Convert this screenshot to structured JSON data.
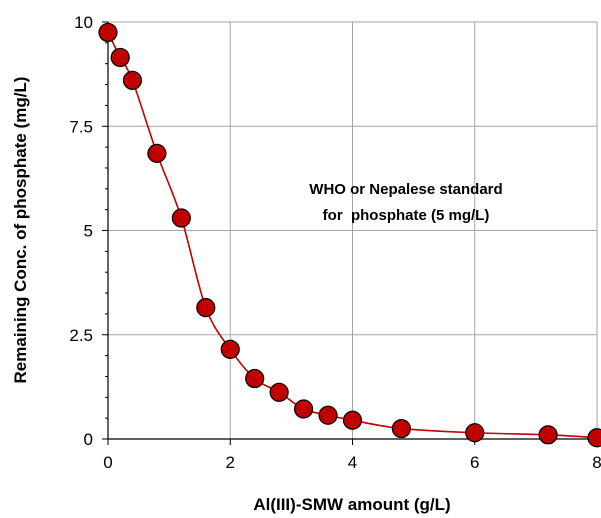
{
  "chart_data": {
    "type": "scatter",
    "title": "",
    "xlabel": "Al(III)-SMW amount (g/L)",
    "ylabel": "Remaining Conc. of phosphate (mg/L)",
    "xlim": [
      0,
      8
    ],
    "ylim": [
      0,
      10
    ],
    "x_ticks": [
      0,
      2,
      4,
      6,
      8
    ],
    "y_ticks": [
      0,
      2.5,
      5,
      7.5,
      10
    ],
    "x_tick_labels": [
      "0",
      "2",
      "4",
      "6",
      "8"
    ],
    "y_tick_labels": [
      "0",
      "2.5",
      "5",
      "7.5",
      "10"
    ],
    "grid": true,
    "line": "smooth",
    "colors": {
      "marker_fill": "#c00000",
      "marker_stroke": "#000000",
      "line": "#c00000",
      "grid": "#a6a6a6"
    },
    "annotation": {
      "line1": "WHO or Nepalese standard",
      "line2": "for  phosphate (5 mg/L)"
    },
    "series": [
      {
        "x": [
          0,
          0.2,
          0.4,
          0.8,
          1.2,
          1.6,
          2.0,
          2.4,
          2.8,
          3.2,
          3.6,
          4.0,
          4.8,
          6.0,
          7.2,
          8.0
        ],
        "y": [
          9.75,
          9.15,
          8.6,
          6.85,
          5.3,
          3.15,
          2.15,
          1.45,
          1.12,
          0.72,
          0.57,
          0.45,
          0.25,
          0.15,
          0.1,
          0.03
        ]
      }
    ]
  }
}
